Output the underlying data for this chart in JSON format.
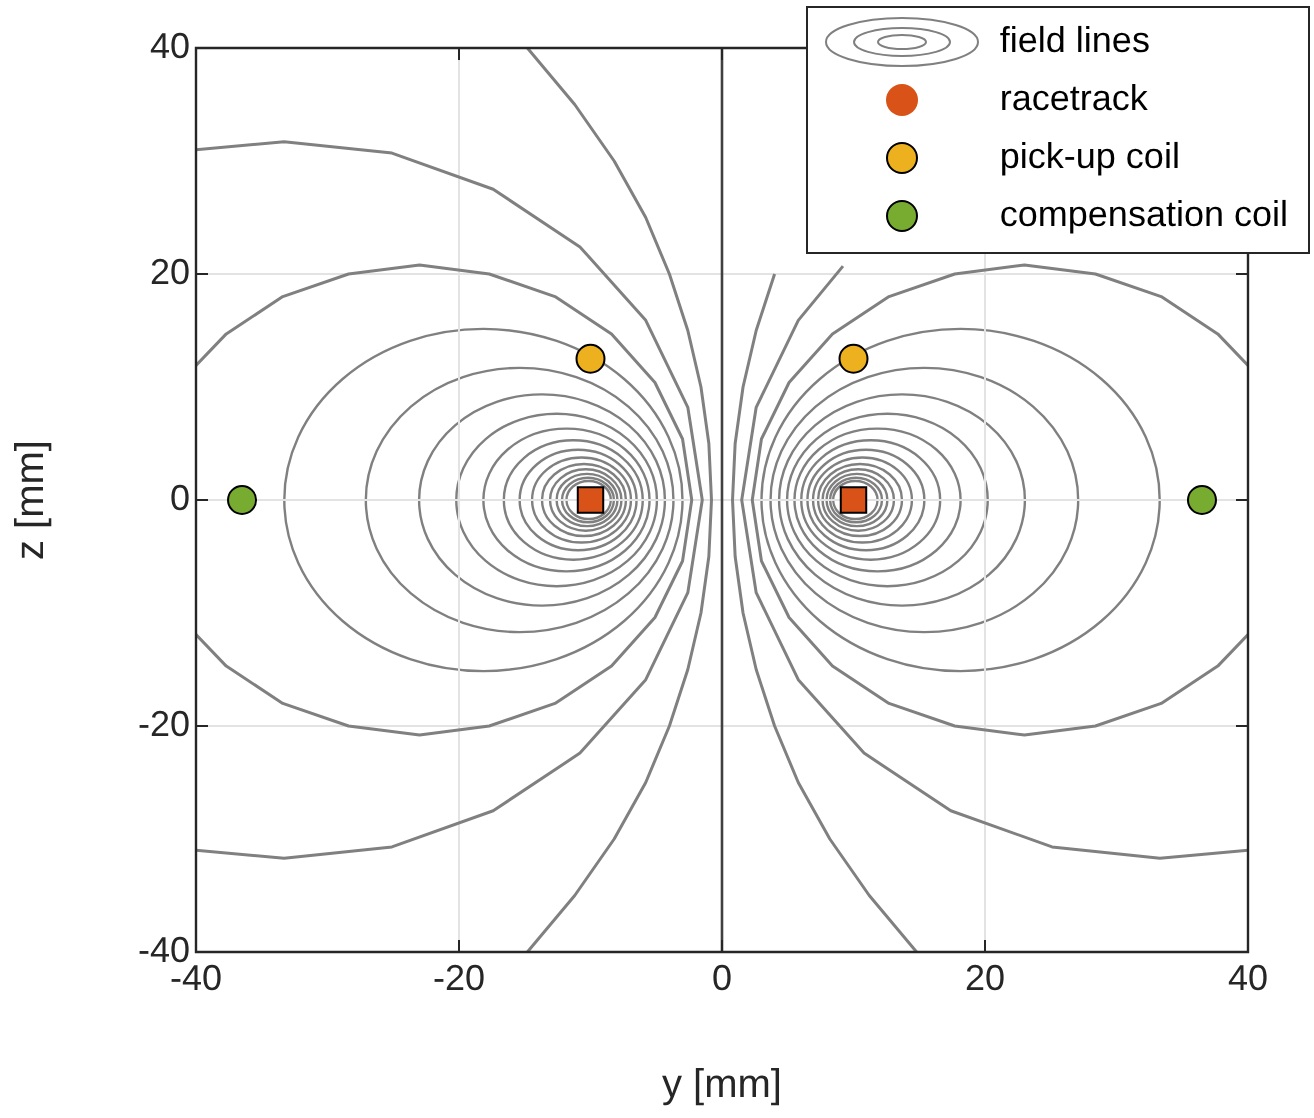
{
  "chart_data": {
    "type": "line",
    "xlabel": "y [mm]",
    "ylabel": "z [mm]",
    "xlim": [
      -40,
      40
    ],
    "xticks": [
      -40,
      -20,
      0,
      20,
      40
    ],
    "ylim": [
      -40,
      40
    ],
    "yticks": [
      -40,
      -20,
      0,
      20,
      40
    ],
    "grid": true,
    "legend": "top right",
    "ref_lines": [
      {
        "axis": "x",
        "value": 0,
        "color": "#404040"
      }
    ],
    "series": [
      {
        "name": "field lines",
        "color": "#808080",
        "x": [
          4.0,
          2.6,
          1.6,
          1.0,
          0.8,
          1.0,
          1.6,
          2.6,
          4.0,
          5.8,
          8.2,
          11.2,
          14.8
        ],
        "values": [
          20,
          15,
          10,
          5,
          0,
          -5,
          -10,
          -15,
          -20,
          -25,
          -30,
          -35,
          -40
        ]
      },
      {
        "color": "#808080",
        "x": [
          9.2,
          5.8,
          2.6,
          1.5,
          2.6,
          5.8,
          10.8,
          17.4,
          25.1,
          33.3,
          40
        ],
        "values": [
          20.7,
          15.9,
          8.2,
          0,
          -8.2,
          -15.9,
          -22.4,
          -27.5,
          -30.7,
          -31.7,
          -31.0
        ]
      },
      {
        "color": "#808080",
        "x": [
          40,
          37.7,
          33.4,
          28.4,
          23.0,
          17.7,
          12.7,
          8.4,
          5.1,
          3.0,
          2.3,
          3.0,
          5.1,
          8.4,
          12.7,
          17.7,
          23.0,
          28.4,
          33.4,
          37.7,
          40
        ],
        "values": [
          11.9,
          14.7,
          18.0,
          20.0,
          20.8,
          20.0,
          18.0,
          14.7,
          10.4,
          5.4,
          0,
          -5.4,
          -10.4,
          -14.7,
          -18.0,
          -20.0,
          -20.8,
          -20.0,
          -18.0,
          -14.7,
          -11.9
        ]
      },
      {
        "color": "#808080",
        "x": [
          -14.8,
          -11.2,
          -8.2,
          -5.8,
          -4.0,
          -2.6,
          -1.6,
          -1.0,
          -0.8,
          -1.0,
          -1.6,
          -2.6,
          -4.0,
          -5.8,
          -8.2,
          -11.2,
          -14.8
        ],
        "values": [
          40,
          35,
          30,
          25,
          20,
          15,
          10,
          5,
          0,
          -5,
          -10,
          -15,
          -20,
          -25,
          -30,
          -35,
          -40
        ]
      },
      {
        "color": "#808080",
        "x": [
          -40,
          -33.3,
          -25.1,
          -17.4,
          -10.8,
          -5.8,
          -2.6,
          -1.5,
          -2.6,
          -5.8,
          -10.8,
          -17.4,
          -25.1,
          -33.3,
          -40
        ],
        "values": [
          31.0,
          31.7,
          30.7,
          27.5,
          22.4,
          15.9,
          8.2,
          0,
          -8.2,
          -15.9,
          -22.4,
          -27.5,
          -30.7,
          -31.7,
          -31.0
        ]
      },
      {
        "color": "#808080",
        "x": [
          -40,
          -37.7,
          -33.4,
          -28.4,
          -23.0,
          -17.7,
          -12.7,
          -8.4,
          -5.1,
          -3.0,
          -2.3,
          -3.0,
          -5.1,
          -8.4,
          -12.7,
          -17.7,
          -23.0,
          -28.4,
          -33.4,
          -37.7,
          -40
        ],
        "values": [
          11.9,
          14.7,
          18.0,
          20.0,
          20.8,
          20.0,
          18.0,
          14.7,
          10.4,
          5.4,
          0,
          -5.4,
          -10.4,
          -14.7,
          -18.0,
          -20.0,
          -20.8,
          -20.0,
          -18.0,
          -14.7,
          -11.9
        ]
      },
      {
        "name": "racetrack",
        "type": "scatter",
        "marker": "square",
        "color": "#d95319",
        "x": [
          -10,
          10
        ],
        "values": [
          0,
          0
        ]
      },
      {
        "name": "pick-up coil",
        "type": "scatter",
        "marker": "circle",
        "color": "#edb120",
        "x": [
          -10,
          10
        ],
        "values": [
          12.5,
          12.5
        ]
      },
      {
        "name": "compensation coil",
        "type": "scatter",
        "marker": "circle",
        "color": "#77ac30",
        "x": [
          -36.5,
          36.5
        ],
        "values": [
          0,
          0
        ]
      }
    ]
  }
}
